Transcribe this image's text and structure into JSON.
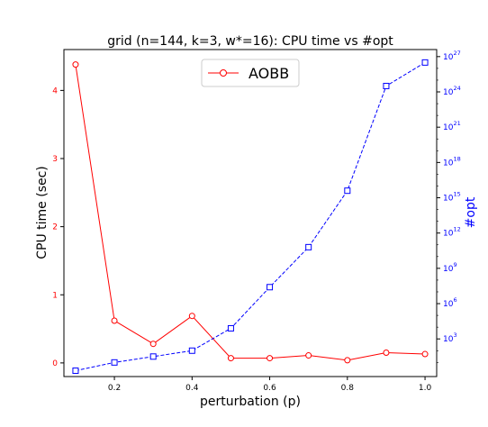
{
  "chart_data": {
    "type": "line",
    "title": "grid (n=144, k=3, w*=16): CPU time vs #opt",
    "xlabel": "perturbation (p)",
    "ylabel": "CPU time (sec)",
    "y2label": "#opt",
    "xlim": [
      0.07,
      1.03
    ],
    "ylim": [
      -0.2,
      4.6
    ],
    "y2_scale": "log",
    "y2_log10_range": [
      -0.2,
      27.6
    ],
    "x_ticks": [
      {
        "value": 0.2,
        "label": "0.2"
      },
      {
        "value": 0.4,
        "label": "0.4"
      },
      {
        "value": 0.6,
        "label": "0.6"
      },
      {
        "value": 0.8,
        "label": "0.8"
      },
      {
        "value": 1.0,
        "label": "1.0"
      }
    ],
    "y_ticks": [
      {
        "value": 0,
        "label": "0"
      },
      {
        "value": 1,
        "label": "1"
      },
      {
        "value": 2,
        "label": "2"
      },
      {
        "value": 3,
        "label": "3"
      },
      {
        "value": 4,
        "label": "4"
      }
    ],
    "y2_ticks": [
      {
        "exp": 3,
        "base": "10",
        "sup": "3"
      },
      {
        "exp": 6,
        "base": "10",
        "sup": "6"
      },
      {
        "exp": 9,
        "base": "10",
        "sup": "9"
      },
      {
        "exp": 12,
        "base": "10",
        "sup": "12"
      },
      {
        "exp": 15,
        "base": "10",
        "sup": "15"
      },
      {
        "exp": 18,
        "base": "10",
        "sup": "18"
      },
      {
        "exp": 21,
        "base": "10",
        "sup": "21"
      },
      {
        "exp": 24,
        "base": "10",
        "sup": "24"
      },
      {
        "exp": 27,
        "base": "10",
        "sup": "27"
      }
    ],
    "x": [
      0.1,
      0.2,
      0.3,
      0.4,
      0.5,
      0.6,
      0.7,
      0.8,
      0.9,
      1.0
    ],
    "series": [
      {
        "name": "AOBB",
        "axis": "left",
        "color": "#ff0000",
        "marker": "circle",
        "line": "solid",
        "values": [
          4.38,
          0.62,
          0.28,
          0.69,
          0.07,
          0.07,
          0.11,
          0.04,
          0.15,
          0.13
        ]
      },
      {
        "axis": "right",
        "color": "#0000ff",
        "marker": "square",
        "line": "dashed",
        "log10_values": [
          0.3,
          1.0,
          1.5,
          2.0,
          3.9,
          7.4,
          10.8,
          15.6,
          24.5,
          26.5
        ]
      }
    ],
    "legend": {
      "placement": "top-center"
    }
  }
}
